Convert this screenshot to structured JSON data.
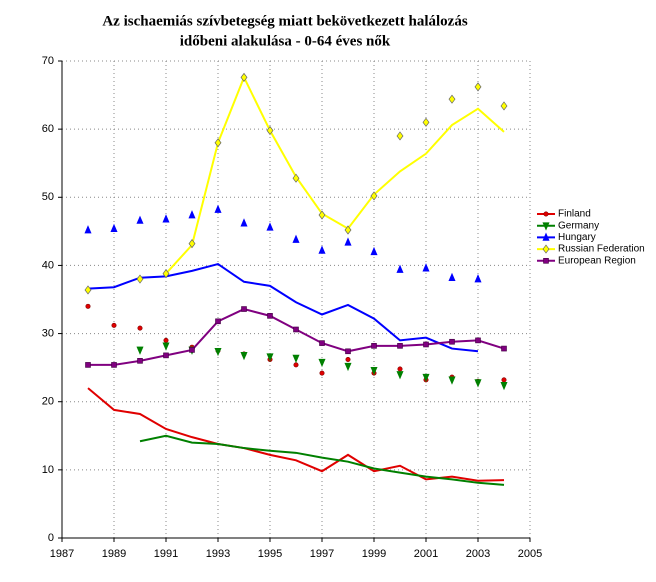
{
  "chart_data": {
    "type": "line",
    "title_lines": [
      "Az ischaemiás szívbetegség miatt bekövetkezett halálozás",
      "időbeni alakulása  -  0-64 éves nők"
    ],
    "x": [
      1988,
      1989,
      1990,
      1991,
      1992,
      1993,
      1994,
      1995,
      1996,
      1997,
      1998,
      1999,
      2000,
      2001,
      2002,
      2003,
      2004
    ],
    "xlim": [
      1987,
      2005
    ],
    "xticks": [
      1987,
      1989,
      1991,
      1993,
      1995,
      1997,
      1999,
      2001,
      2003,
      2005
    ],
    "ylim": [
      0,
      70
    ],
    "yticks": [
      0,
      10,
      20,
      30,
      40,
      50,
      60,
      70
    ],
    "grid": true,
    "series": [
      {
        "name": "Finland",
        "color": "#e00000",
        "marker": "circle",
        "values": [
          22,
          18.8,
          18.2,
          16,
          14.8,
          13.8,
          13.2,
          12.2,
          11.4,
          9.8,
          12.2,
          9.8,
          10.6,
          8.6,
          9.0,
          8.4,
          8.5
        ],
        "marker_values": [
          34,
          31.2,
          30.8,
          29,
          28,
          27.5,
          27,
          26.2,
          25.4,
          24.2,
          26.2,
          24.2,
          24.8,
          23.2,
          23.6,
          23,
          23.2
        ]
      },
      {
        "name": "Germany",
        "color": "#008000",
        "marker": "triangle-down",
        "values": [
          null,
          null,
          14.2,
          15,
          14,
          13.8,
          13.2,
          12.8,
          12.5,
          11.8,
          11.2,
          10.2,
          9.6,
          9,
          8.6,
          8.1,
          7.8
        ],
        "marker_values": [
          null,
          null,
          27.6,
          28.2,
          27.6,
          27.4,
          26.8,
          26.6,
          26.4,
          25.8,
          25.2,
          24.6,
          24,
          23.6,
          23.2,
          22.8,
          22.4
        ]
      },
      {
        "name": "Hungary",
        "color": "#0000ff",
        "marker": "triangle-up",
        "values": [
          36.6,
          36.8,
          38.2,
          38.4,
          39.2,
          40.2,
          37.6,
          37,
          34.6,
          32.8,
          34.2,
          32.2,
          29,
          29.4,
          27.8,
          27.4,
          null
        ],
        "marker_values": [
          45.2,
          45.4,
          46.6,
          46.8,
          47.4,
          48.2,
          46.2,
          45.6,
          43.8,
          42.2,
          43.4,
          42,
          39.4,
          39.6,
          38.2,
          38,
          null
        ]
      },
      {
        "name": "Russian Federation",
        "color": "#ffff00",
        "marker": "diamond",
        "values": [
          null,
          null,
          null,
          38.8,
          43,
          58,
          67.6,
          59.8,
          53,
          47.6,
          45.4,
          50.4,
          53.8,
          56.4,
          60.6,
          63,
          59.6
        ],
        "marker_values": [
          36.4,
          null,
          38,
          38.8,
          43.2,
          58,
          67.6,
          59.8,
          52.8,
          47.4,
          45.2,
          50.2,
          59,
          61,
          64.4,
          66.2,
          63.4
        ]
      },
      {
        "name": "European Region",
        "color": "#800080",
        "marker": "square",
        "values": [
          25.4,
          25.4,
          26,
          26.8,
          27.6,
          31.8,
          33.6,
          32.6,
          30.6,
          28.6,
          27.4,
          28.2,
          28.2,
          28.4,
          28.8,
          29,
          27.8
        ],
        "marker_values": [
          25.4,
          25.4,
          26,
          26.8,
          27.6,
          31.8,
          33.6,
          32.6,
          30.6,
          28.6,
          27.4,
          28.2,
          28.2,
          28.4,
          28.8,
          29,
          27.8
        ]
      }
    ]
  }
}
